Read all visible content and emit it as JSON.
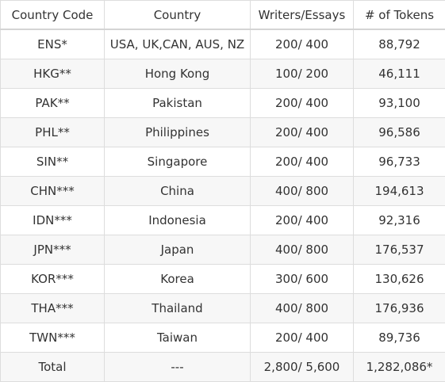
{
  "table": {
    "headers": [
      "Country Code",
      "Country",
      "Writers/Essays",
      "# of Tokens"
    ],
    "rows": [
      [
        "ENS*",
        "USA, UK,CAN, AUS, NZ",
        "200/ 400",
        "88,792"
      ],
      [
        "HKG**",
        "Hong Kong",
        "100/ 200",
        "46,111"
      ],
      [
        "PAK**",
        "Pakistan",
        "200/ 400",
        "93,100"
      ],
      [
        "PHL**",
        "Philippines",
        "200/ 400",
        "96,586"
      ],
      [
        "SIN**",
        "Singapore",
        "200/ 400",
        "96,733"
      ],
      [
        "CHN***",
        "China",
        "400/ 800",
        "194,613"
      ],
      [
        "IDN***",
        "Indonesia",
        "200/ 400",
        "92,316"
      ],
      [
        "JPN***",
        "Japan",
        "400/ 800",
        "176,537"
      ],
      [
        "KOR***",
        "Korea",
        "300/ 600",
        "130,626"
      ],
      [
        "THA***",
        "Thailand",
        "400/ 800",
        "176,936"
      ],
      [
        "TWN***",
        "Taiwan",
        "200/ 400",
        "89,736"
      ],
      [
        "Total",
        "---",
        "2,800/ 5,600",
        "1,282,086*"
      ]
    ]
  }
}
